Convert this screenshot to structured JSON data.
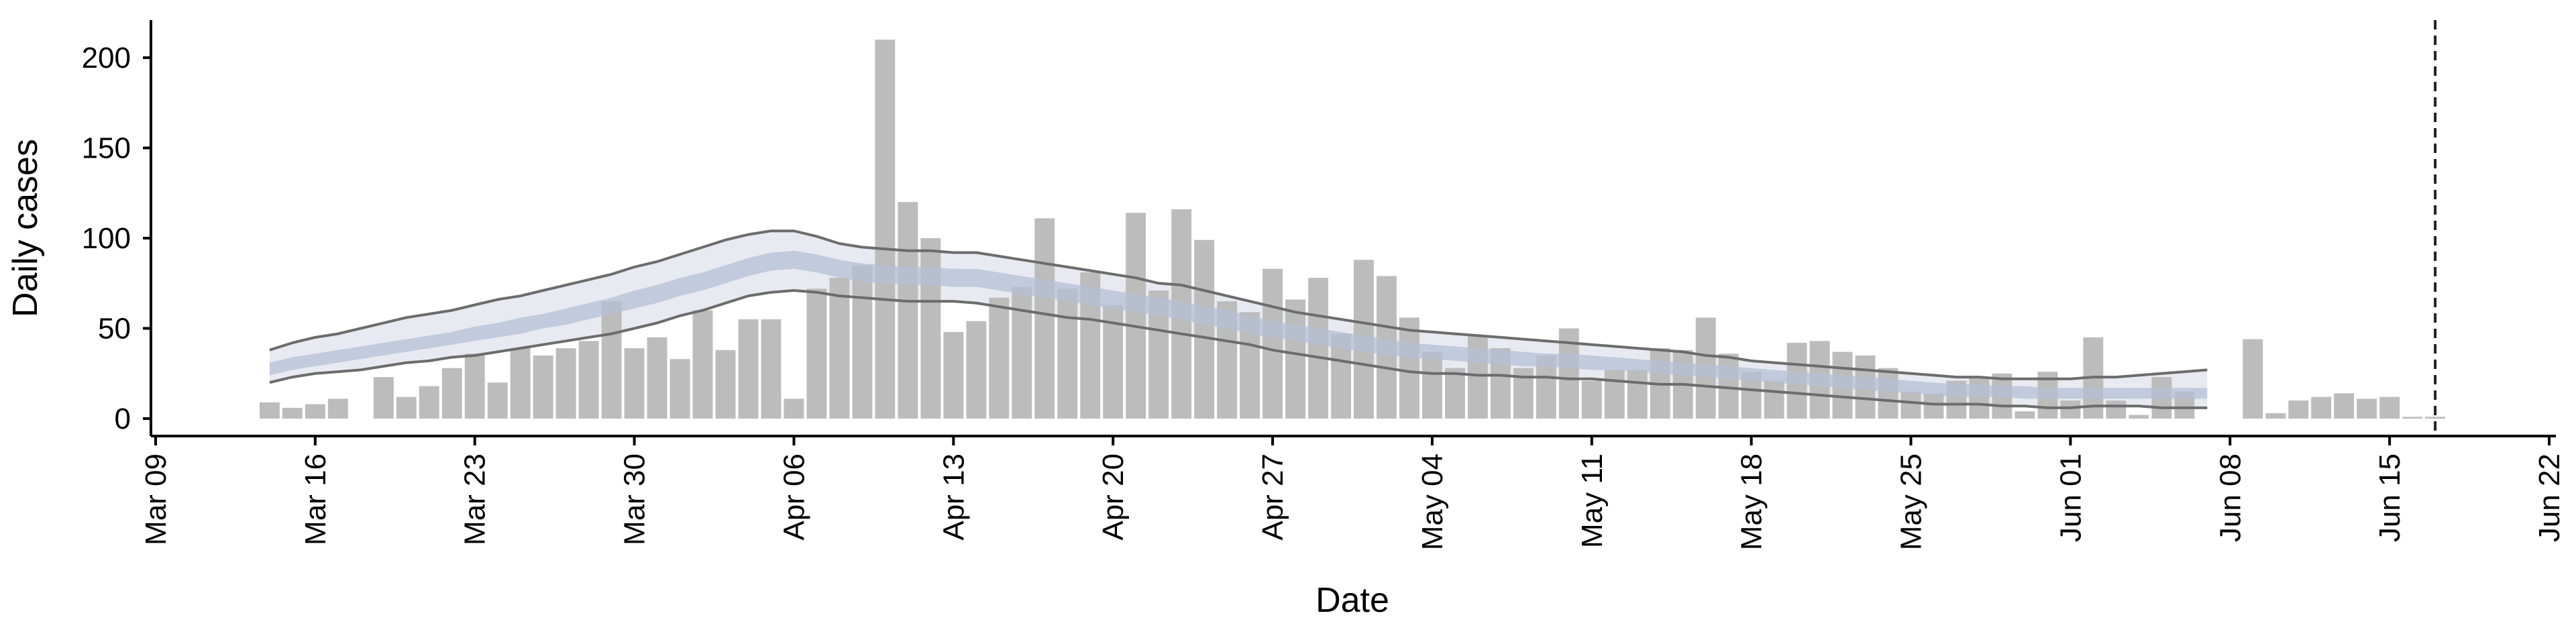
{
  "chart_data": {
    "type": "bar",
    "xlabel": "Date",
    "ylabel": "Daily cases",
    "x_range": [
      "2020-03-09",
      "2020-06-22"
    ],
    "ylim": [
      0,
      220
    ],
    "y_ticks": [
      0,
      50,
      100,
      150,
      200
    ],
    "x_ticks": [
      {
        "date": "2020-03-09",
        "label": "Mar 09"
      },
      {
        "date": "2020-03-16",
        "label": "Mar 16"
      },
      {
        "date": "2020-03-23",
        "label": "Mar 23"
      },
      {
        "date": "2020-03-30",
        "label": "Mar 30"
      },
      {
        "date": "2020-04-06",
        "label": "Apr 06"
      },
      {
        "date": "2020-04-13",
        "label": "Apr 13"
      },
      {
        "date": "2020-04-20",
        "label": "Apr 20"
      },
      {
        "date": "2020-04-27",
        "label": "Apr 27"
      },
      {
        "date": "2020-05-04",
        "label": "May 04"
      },
      {
        "date": "2020-05-11",
        "label": "May 11"
      },
      {
        "date": "2020-05-18",
        "label": "May 18"
      },
      {
        "date": "2020-05-25",
        "label": "May 25"
      },
      {
        "date": "2020-06-01",
        "label": "Jun 01"
      },
      {
        "date": "2020-06-08",
        "label": "Jun 08"
      },
      {
        "date": "2020-06-15",
        "label": "Jun 15"
      },
      {
        "date": "2020-06-22",
        "label": "Jun 22"
      }
    ],
    "bars_first_date": "2020-03-14",
    "bar_values": [
      9,
      6,
      8,
      11,
      0,
      23,
      12,
      18,
      28,
      36,
      20,
      39,
      35,
      39,
      43,
      65,
      39,
      45,
      33,
      60,
      38,
      55,
      55,
      11,
      72,
      78,
      85,
      210,
      120,
      100,
      48,
      54,
      67,
      73,
      111,
      72,
      81,
      63,
      114,
      71,
      116,
      99,
      65,
      59,
      83,
      66,
      78,
      47,
      88,
      79,
      56,
      37,
      28,
      46,
      39,
      28,
      35,
      50,
      21,
      27,
      27,
      39,
      38,
      56,
      36,
      26,
      21,
      42,
      43,
      37,
      35,
      28,
      15,
      14,
      21,
      23,
      25,
      4,
      26,
      10,
      45,
      10,
      2,
      23,
      15,
      0,
      0,
      44,
      3,
      10,
      12,
      14,
      11,
      12,
      1,
      1
    ],
    "band_first_date": "2020-03-14",
    "band_upper": [
      38,
      42,
      45,
      47,
      50,
      53,
      56,
      58,
      60,
      63,
      66,
      68,
      71,
      74,
      77,
      80,
      84,
      87,
      91,
      95,
      99,
      102,
      104,
      104,
      101,
      97,
      95,
      94,
      93,
      93,
      92,
      92,
      90,
      88,
      86,
      84,
      82,
      80,
      78,
      75,
      74,
      71,
      68,
      65,
      62,
      59,
      57,
      55,
      53,
      51,
      49,
      48,
      47,
      46,
      45,
      44,
      43,
      42,
      41,
      40,
      39,
      38,
      37,
      35,
      34,
      32,
      31,
      30,
      29,
      28,
      27,
      26,
      25,
      24,
      23,
      23,
      22,
      22,
      22,
      22,
      23,
      23,
      24,
      25,
      26,
      27
    ],
    "band_lower": [
      20,
      23,
      25,
      26,
      27,
      29,
      31,
      32,
      34,
      35,
      37,
      39,
      41,
      43,
      45,
      47,
      50,
      53,
      57,
      60,
      64,
      68,
      70,
      71,
      70,
      68,
      67,
      66,
      65,
      65,
      65,
      64,
      62,
      60,
      58,
      56,
      55,
      53,
      51,
      49,
      47,
      45,
      43,
      41,
      38,
      36,
      34,
      32,
      30,
      28,
      26,
      25,
      25,
      24,
      24,
      23,
      23,
      22,
      22,
      21,
      20,
      19,
      19,
      18,
      17,
      16,
      15,
      14,
      13,
      12,
      11,
      10,
      9,
      8,
      8,
      8,
      7,
      7,
      6,
      6,
      7,
      7,
      7,
      6,
      6,
      6
    ],
    "band_median_upper": [
      31,
      34,
      36,
      38,
      40,
      42,
      44,
      46,
      48,
      51,
      53,
      56,
      58,
      61,
      64,
      67,
      71,
      74,
      78,
      81,
      85,
      89,
      92,
      93,
      91,
      88,
      86,
      85,
      84,
      84,
      83,
      83,
      81,
      79,
      77,
      75,
      73,
      71,
      69,
      67,
      65,
      62,
      60,
      57,
      54,
      52,
      50,
      48,
      46,
      44,
      42,
      41,
      40,
      39,
      38,
      37,
      36,
      36,
      35,
      34,
      33,
      32,
      31,
      30,
      29,
      28,
      27,
      26,
      25,
      24,
      23,
      22,
      21,
      20,
      19,
      19,
      18,
      18,
      17,
      17,
      17,
      17,
      17,
      17,
      17,
      17
    ],
    "band_median_lower": [
      24,
      27,
      29,
      31,
      33,
      35,
      37,
      39,
      41,
      43,
      45,
      47,
      50,
      52,
      55,
      58,
      61,
      64,
      68,
      71,
      75,
      79,
      82,
      83,
      81,
      78,
      76,
      75,
      74,
      74,
      73,
      73,
      71,
      69,
      67,
      65,
      63,
      61,
      59,
      57,
      55,
      52,
      50,
      47,
      45,
      43,
      41,
      39,
      37,
      35,
      34,
      33,
      32,
      31,
      30,
      29,
      29,
      28,
      27,
      27,
      26,
      25,
      24,
      23,
      22,
      21,
      20,
      19,
      18,
      17,
      16,
      15,
      14,
      13,
      12,
      12,
      12,
      11,
      11,
      11,
      11,
      11,
      11,
      11,
      11,
      11
    ],
    "vline_date": "2020-06-17",
    "colors": {
      "bar": "#bcbcbc",
      "outer_band": "#e8eaf2",
      "inner_band": "#b6c0d6",
      "band_edge": "#6c6c6c",
      "vline": "#222222",
      "axis": "#000000"
    }
  }
}
